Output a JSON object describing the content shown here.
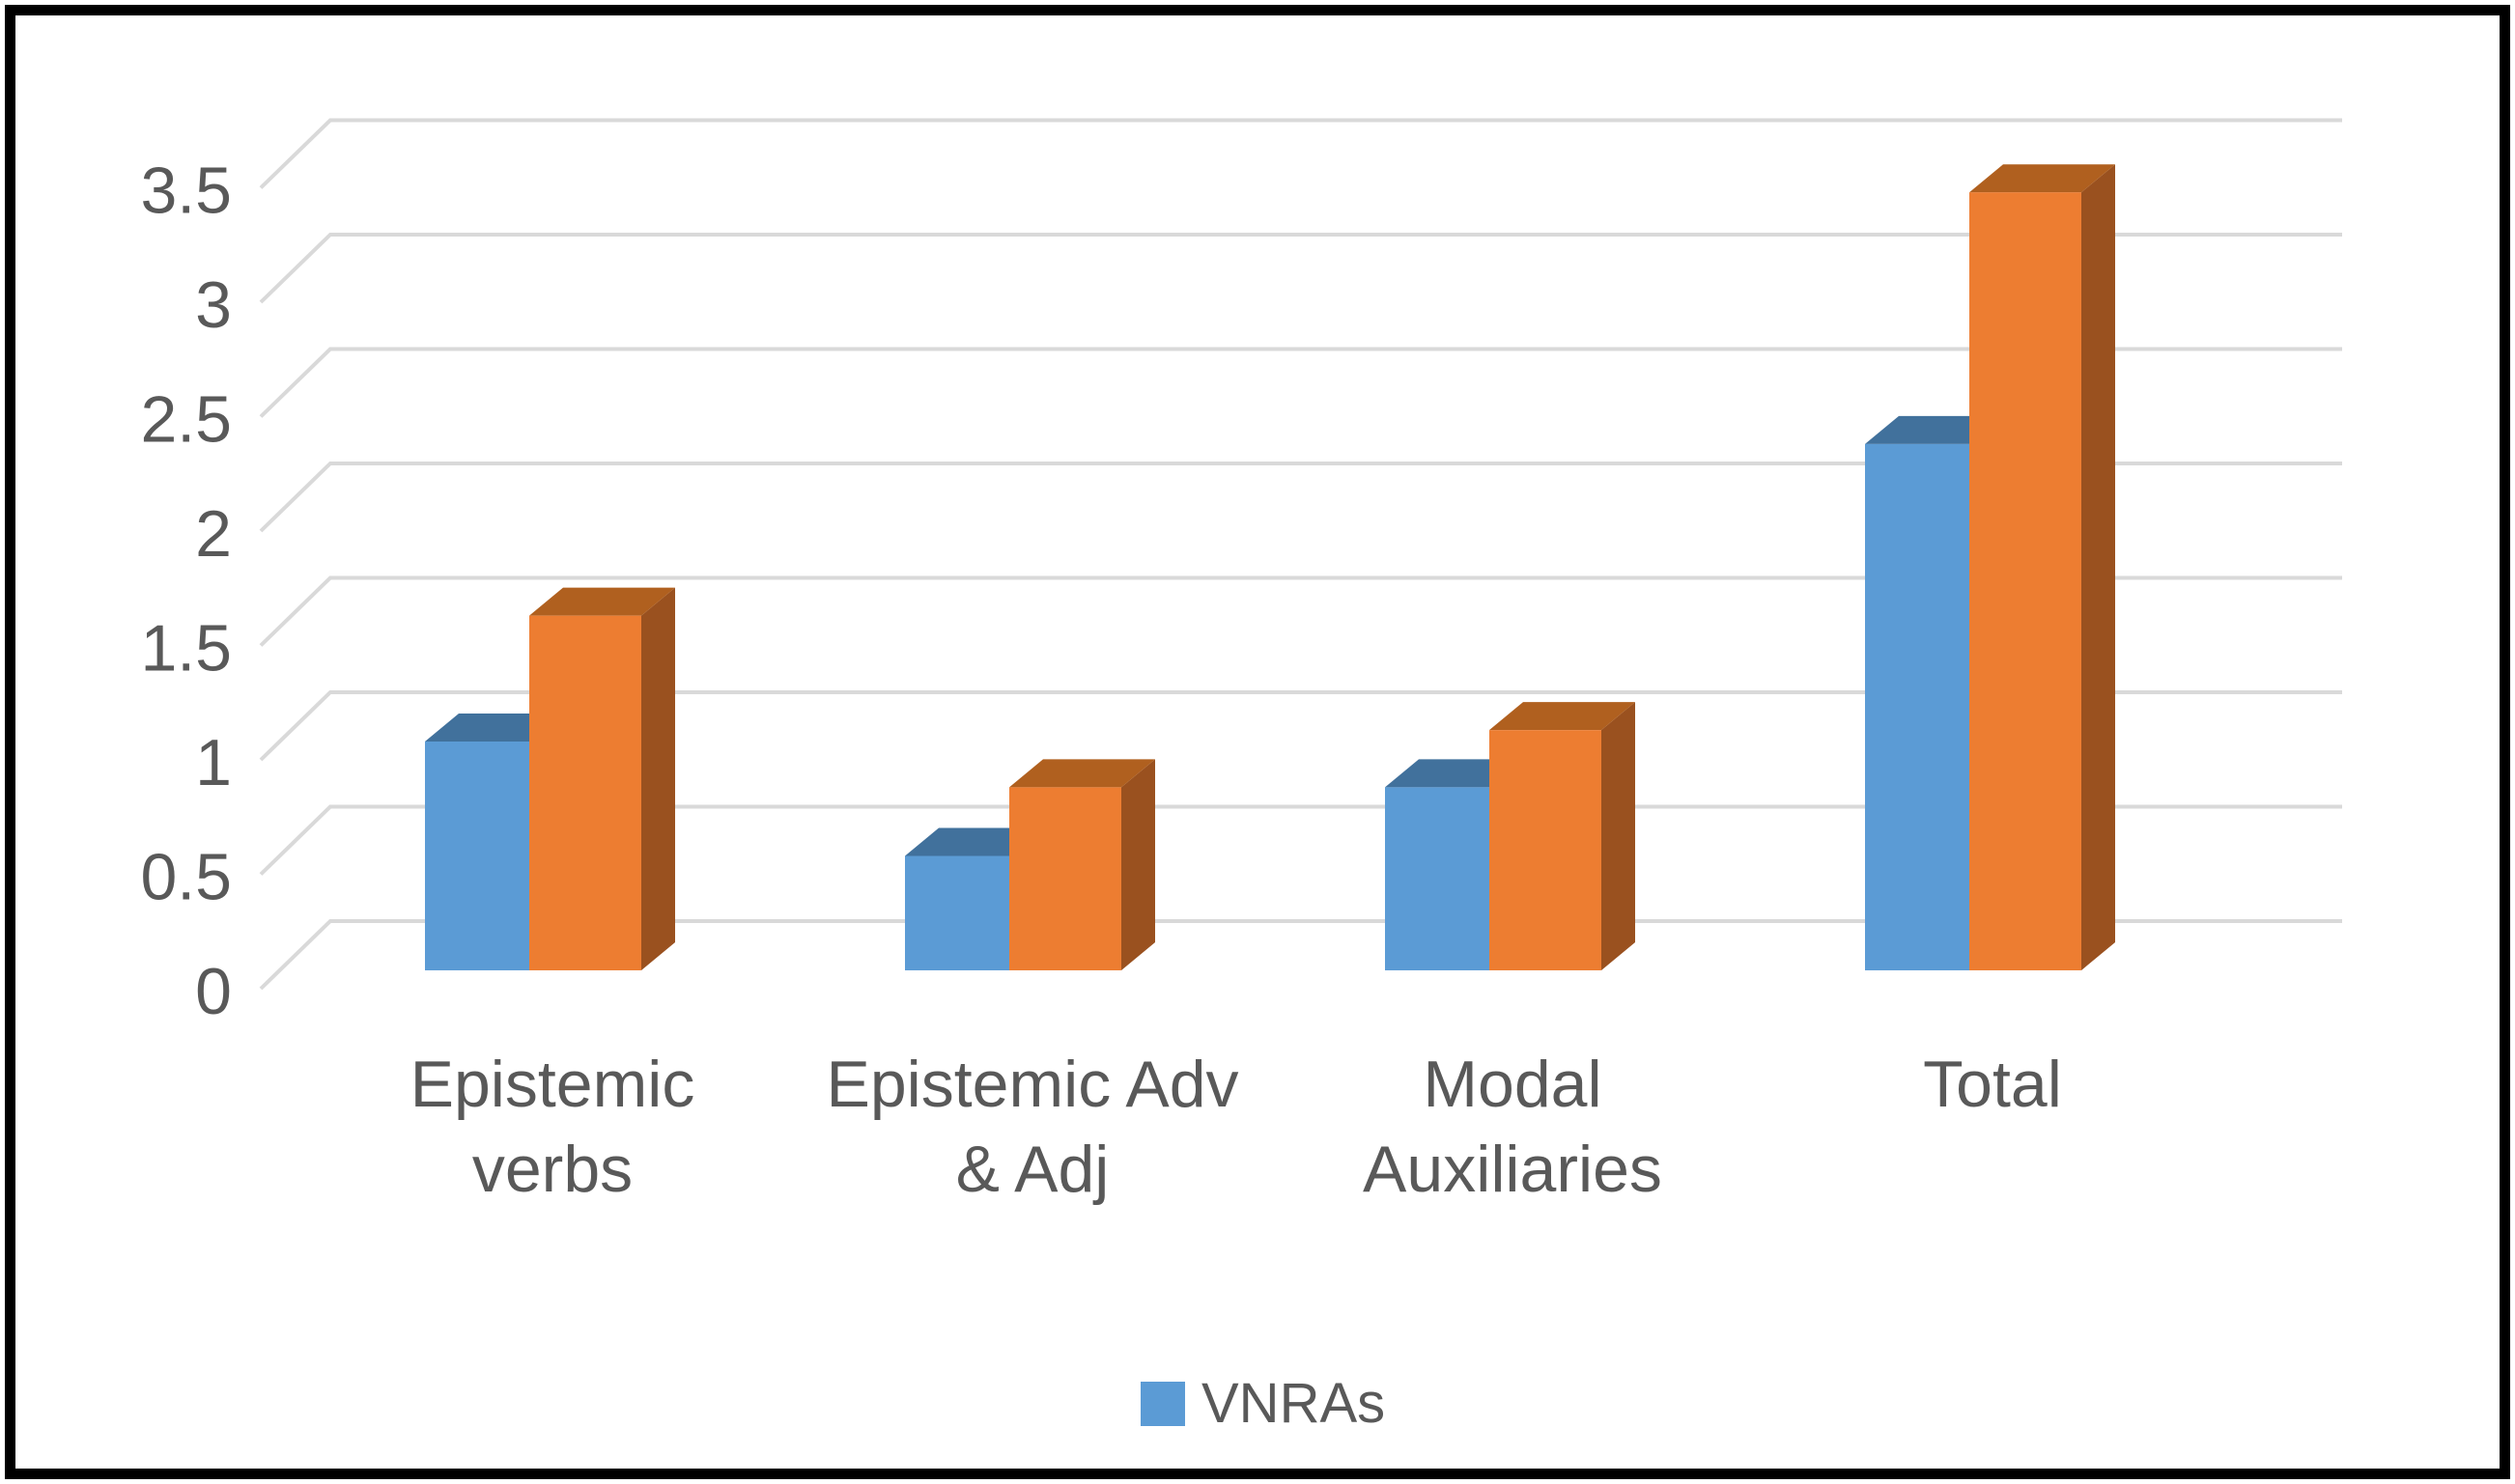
{
  "chart_data": {
    "type": "bar",
    "subtype": "3d-clustered-column",
    "title": "",
    "categories": [
      "Epistemic verbs",
      "Epistemic Adv & Adj",
      "Modal Auxiliaries",
      "Total"
    ],
    "categories_display": [
      [
        "Epistemic",
        "verbs"
      ],
      [
        "Epistemic Adv",
        "& Adj"
      ],
      [
        "Modal",
        "Auxiliaries"
      ],
      [
        "Total"
      ]
    ],
    "series": [
      {
        "name": "VNRAs",
        "color": "#5B9BD5",
        "values": [
          1,
          0.5,
          0.8,
          2.3
        ]
      },
      {
        "name": "",
        "color": "#ED7D31",
        "values": [
          1.55,
          0.8,
          1.05,
          3.4
        ]
      }
    ],
    "ylim": [
      0,
      3.5
    ],
    "ytick_step": 0.5,
    "yticks": [
      {
        "label": "3.5",
        "value": 3.5
      },
      {
        "label": "3",
        "value": 3
      },
      {
        "label": "2.5",
        "value": 2.5
      },
      {
        "label": "2",
        "value": 2
      },
      {
        "label": "1.5",
        "value": 1.5
      },
      {
        "label": "1",
        "value": 1
      },
      {
        "label": "0.5",
        "value": 0.5
      },
      {
        "label": "0",
        "value": 0
      }
    ],
    "grid": true,
    "legend": {
      "position": "bottom",
      "entries": [
        {
          "label": "VNRAs",
          "color": "#5B9BD5"
        }
      ]
    },
    "colors": {
      "background": "#FFFFFF",
      "frame": "#000000",
      "gridline": "#D9D9D9",
      "axis_text": "#595959",
      "series_tops": [
        "#41719C",
        "#B0601F"
      ],
      "series_sides": [
        "#34597B",
        "#9A511F"
      ]
    }
  }
}
